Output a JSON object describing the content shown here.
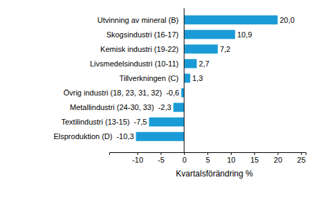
{
  "chart_data": {
    "type": "bar",
    "orientation": "horizontal",
    "categories": [
      "Utvinning av mineral (B)",
      "Skogsindustri (16-17)",
      "Kemisk industri (19-22)",
      "Livsmedelsindustri (10-11)",
      "Tillverkningen (C)",
      "Övrig industri (18, 23, 31, 32)",
      "Metallindustri (24-30, 33)",
      "Textilindustri (13-15)",
      "Elsproduktion (D)"
    ],
    "values": [
      20.0,
      10.9,
      7.2,
      2.7,
      1.3,
      -0.6,
      -2.3,
      -7.5,
      -10.3
    ],
    "value_labels": [
      "20,0",
      "10,9",
      "7,2",
      "2,7",
      "1,3",
      "-0,6",
      "-2,3",
      "-7,5",
      "-10,3"
    ],
    "data_labels": true,
    "color": "#1a9bd7",
    "x_label": "Kvartalsförändring %",
    "xlim": [
      -16,
      26
    ],
    "xticks": [
      -10,
      -5,
      0,
      5,
      10,
      15,
      20,
      25
    ],
    "grid": false
  }
}
